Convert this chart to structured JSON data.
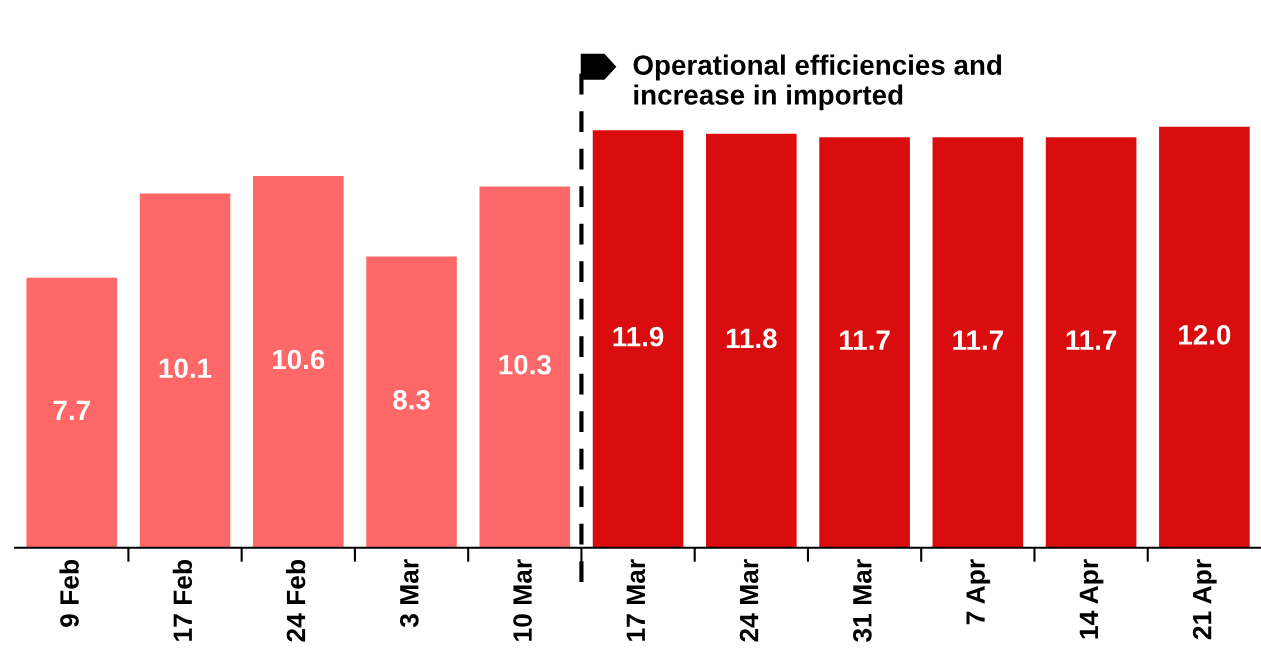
{
  "chart_data": {
    "type": "bar",
    "categories": [
      "9 Feb",
      "17 Feb",
      "24 Feb",
      "3 Mar",
      "10 Mar",
      "17 Mar",
      "24 Mar",
      "31 Mar",
      "7 Apr",
      "14 Apr",
      "21 Apr"
    ],
    "values": [
      7.7,
      10.1,
      10.6,
      8.3,
      10.3,
      11.9,
      11.8,
      11.7,
      11.7,
      11.7,
      12.0
    ],
    "value_labels": [
      "7.7",
      "10.1",
      "10.6",
      "8.3",
      "10.3",
      "11.9",
      "11.8",
      "11.7",
      "11.7",
      "11.7",
      "12.0"
    ],
    "colors": [
      "#ff6868",
      "#ff6868",
      "#ff6868",
      "#ff6868",
      "#ff6868",
      "#d90d0d",
      "#d90d0d",
      "#d90d0d",
      "#d90d0d",
      "#d90d0d",
      "#d90d0d"
    ],
    "tick_labels": "x",
    "annotations": [
      "Operational efficiencies and\nincrease in imported"
    ]
  }
}
